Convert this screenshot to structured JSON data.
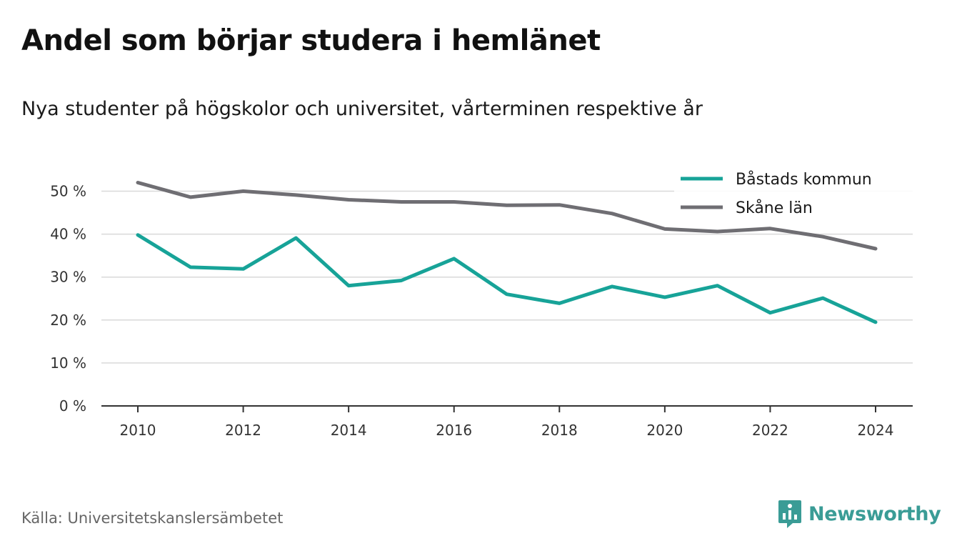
{
  "title": "Andel som börjar studera i hemlänet",
  "subtitle": "Nya studenter på högskolor och universitet, vårterminen respektive år",
  "source": "Källa: Universitetskanslersämbetet",
  "brand": "Newsworthy",
  "chart_data": {
    "type": "line",
    "x": [
      2010,
      2011,
      2012,
      2013,
      2014,
      2015,
      2016,
      2017,
      2018,
      2019,
      2020,
      2021,
      2022,
      2023,
      2024
    ],
    "series": [
      {
        "name": "Båstads kommun",
        "color": "#17a398",
        "values": [
          39.8,
          32.3,
          31.9,
          39.1,
          28.0,
          29.2,
          34.3,
          26.0,
          23.9,
          27.8,
          25.3,
          28.0,
          21.7,
          25.1,
          19.5
        ]
      },
      {
        "name": "Skåne län",
        "color": "#6f6e73",
        "values": [
          52.0,
          48.6,
          50.0,
          49.1,
          48.0,
          47.5,
          47.5,
          46.7,
          46.8,
          44.8,
          41.2,
          40.6,
          41.3,
          39.4,
          36.6
        ]
      }
    ],
    "xticks": [
      "2010",
      "2012",
      "2014",
      "2016",
      "2018",
      "2020",
      "2022",
      "2024"
    ],
    "yticks": [
      "0 %",
      "10 %",
      "20 %",
      "30 %",
      "40 %",
      "50 %"
    ],
    "ylim": [
      0,
      55
    ],
    "xlim": [
      2009.3,
      2024.7
    ],
    "grid": true,
    "legend": "top-right"
  }
}
